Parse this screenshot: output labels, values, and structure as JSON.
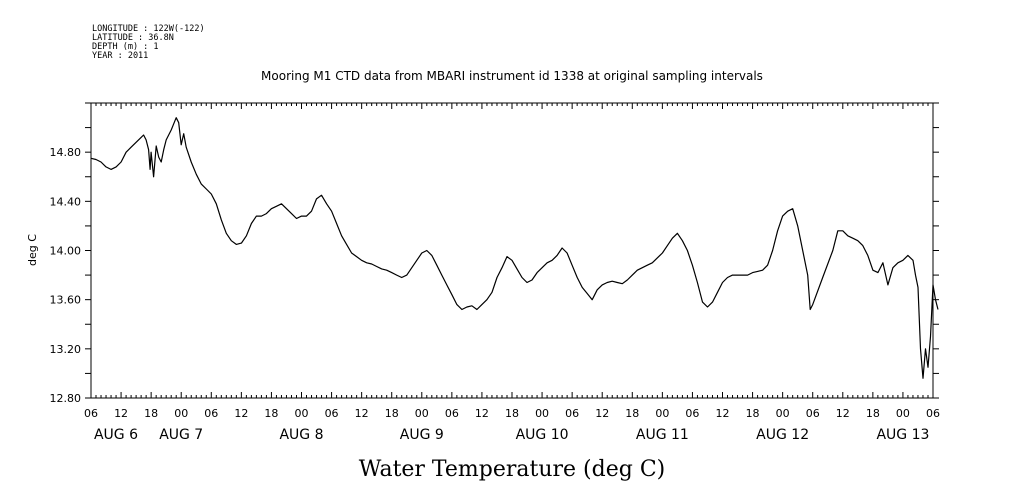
{
  "header": {
    "lines": [
      "LONGITUDE : 122W(-122)",
      "LATITUDE : 36.8N",
      "DEPTH (m) : 1",
      "YEAR : 2011"
    ]
  },
  "chart_data": {
    "type": "line",
    "title": "Mooring M1 CTD data from MBARI instrument id 1338 at original sampling intervals",
    "xlabel": "Water Temperature (deg C)",
    "ylabel": "deg C",
    "ylim": [
      12.8,
      15.2
    ],
    "yticks": [
      "12.80",
      "13.20",
      "13.60",
      "14.00",
      "14.40",
      "14.80"
    ],
    "x_unit": "hours since Aug 6 00:00",
    "xlim": [
      6,
      174
    ],
    "xtick_labels": [
      "06",
      "12",
      "18",
      "00",
      "06",
      "12",
      "18",
      "00",
      "06",
      "12",
      "18",
      "00",
      "06",
      "12",
      "18",
      "00",
      "06",
      "12",
      "18",
      "00",
      "06",
      "12",
      "18",
      "00",
      "06",
      "12",
      "18",
      "00",
      "06"
    ],
    "date_labels": [
      "AUG 6",
      "AUG 7",
      "AUG 8",
      "AUG 9",
      "AUG 10",
      "AUG 11",
      "AUG 12",
      "AUG 13"
    ],
    "grid": false,
    "series": [
      {
        "color": "#000000",
        "points": [
          [
            6,
            14.75
          ],
          [
            7,
            14.74
          ],
          [
            8,
            14.72
          ],
          [
            9,
            14.68
          ],
          [
            10,
            14.66
          ],
          [
            11,
            14.68
          ],
          [
            12,
            14.72
          ],
          [
            13,
            14.8
          ],
          [
            14,
            14.84
          ],
          [
            15,
            14.88
          ],
          [
            16,
            14.92
          ],
          [
            16.5,
            14.94
          ],
          [
            17,
            14.9
          ],
          [
            17.5,
            14.82
          ],
          [
            17.8,
            14.66
          ],
          [
            18,
            14.8
          ],
          [
            18.5,
            14.6
          ],
          [
            19,
            14.85
          ],
          [
            19.5,
            14.76
          ],
          [
            20,
            14.72
          ],
          [
            20.5,
            14.82
          ],
          [
            21,
            14.9
          ],
          [
            22,
            14.98
          ],
          [
            23,
            15.08
          ],
          [
            23.5,
            15.04
          ],
          [
            24,
            14.86
          ],
          [
            24.5,
            14.95
          ],
          [
            25,
            14.84
          ],
          [
            26,
            14.72
          ],
          [
            27,
            14.62
          ],
          [
            28,
            14.54
          ],
          [
            29,
            14.5
          ],
          [
            30,
            14.46
          ],
          [
            31,
            14.38
          ],
          [
            32,
            14.25
          ],
          [
            33,
            14.14
          ],
          [
            34,
            14.08
          ],
          [
            35,
            14.05
          ],
          [
            36,
            14.06
          ],
          [
            37,
            14.12
          ],
          [
            38,
            14.22
          ],
          [
            39,
            14.28
          ],
          [
            40,
            14.28
          ],
          [
            41,
            14.3
          ],
          [
            42,
            14.34
          ],
          [
            43,
            14.36
          ],
          [
            44,
            14.38
          ],
          [
            45,
            14.34
          ],
          [
            46,
            14.3
          ],
          [
            47,
            14.26
          ],
          [
            48,
            14.28
          ],
          [
            49,
            14.28
          ],
          [
            50,
            14.32
          ],
          [
            51,
            14.42
          ],
          [
            52,
            14.45
          ],
          [
            53,
            14.38
          ],
          [
            54,
            14.32
          ],
          [
            55,
            14.22
          ],
          [
            56,
            14.12
          ],
          [
            57,
            14.05
          ],
          [
            58,
            13.98
          ],
          [
            59,
            13.95
          ],
          [
            60,
            13.92
          ],
          [
            61,
            13.9
          ],
          [
            62,
            13.89
          ],
          [
            63,
            13.87
          ],
          [
            64,
            13.85
          ],
          [
            65,
            13.84
          ],
          [
            66,
            13.82
          ],
          [
            67,
            13.8
          ],
          [
            68,
            13.78
          ],
          [
            69,
            13.8
          ],
          [
            70,
            13.86
          ],
          [
            71,
            13.92
          ],
          [
            72,
            13.98
          ],
          [
            73,
            14.0
          ],
          [
            74,
            13.96
          ],
          [
            75,
            13.88
          ],
          [
            76,
            13.8
          ],
          [
            77,
            13.72
          ],
          [
            78,
            13.64
          ],
          [
            79,
            13.56
          ],
          [
            80,
            13.52
          ],
          [
            81,
            13.54
          ],
          [
            82,
            13.55
          ],
          [
            83,
            13.52
          ],
          [
            84,
            13.56
          ],
          [
            85,
            13.6
          ],
          [
            86,
            13.66
          ],
          [
            87,
            13.78
          ],
          [
            88,
            13.86
          ],
          [
            89,
            13.95
          ],
          [
            90,
            13.92
          ],
          [
            91,
            13.85
          ],
          [
            92,
            13.78
          ],
          [
            93,
            13.74
          ],
          [
            94,
            13.76
          ],
          [
            95,
            13.82
          ],
          [
            96,
            13.86
          ],
          [
            97,
            13.9
          ],
          [
            98,
            13.92
          ],
          [
            99,
            13.96
          ],
          [
            100,
            14.02
          ],
          [
            101,
            13.98
          ],
          [
            102,
            13.88
          ],
          [
            103,
            13.78
          ],
          [
            104,
            13.7
          ],
          [
            105,
            13.65
          ],
          [
            106,
            13.6
          ],
          [
            107,
            13.68
          ],
          [
            108,
            13.72
          ],
          [
            109,
            13.74
          ],
          [
            110,
            13.75
          ],
          [
            111,
            13.74
          ],
          [
            112,
            13.73
          ],
          [
            113,
            13.76
          ],
          [
            114,
            13.8
          ],
          [
            115,
            13.84
          ],
          [
            116,
            13.86
          ],
          [
            117,
            13.88
          ],
          [
            118,
            13.9
          ],
          [
            119,
            13.94
          ],
          [
            120,
            13.98
          ],
          [
            121,
            14.04
          ],
          [
            122,
            14.1
          ],
          [
            123,
            14.14
          ],
          [
            124,
            14.08
          ],
          [
            125,
            14.0
          ],
          [
            126,
            13.88
          ],
          [
            127,
            13.74
          ],
          [
            128,
            13.58
          ],
          [
            129,
            13.54
          ],
          [
            130,
            13.58
          ],
          [
            131,
            13.66
          ],
          [
            132,
            13.74
          ],
          [
            133,
            13.78
          ],
          [
            134,
            13.8
          ],
          [
            135,
            13.8
          ],
          [
            136,
            13.8
          ],
          [
            137,
            13.8
          ],
          [
            138,
            13.82
          ],
          [
            139,
            13.83
          ],
          [
            140,
            13.84
          ],
          [
            141,
            13.88
          ],
          [
            142,
            14.0
          ],
          [
            143,
            14.16
          ],
          [
            144,
            14.28
          ],
          [
            145,
            14.32
          ],
          [
            146,
            14.34
          ],
          [
            147,
            14.2
          ],
          [
            148,
            14.0
          ],
          [
            149,
            13.8
          ],
          [
            149.5,
            13.52
          ],
          [
            150,
            13.56
          ],
          [
            152,
            13.78
          ],
          [
            154,
            14.0
          ],
          [
            155,
            14.16
          ],
          [
            156,
            14.16
          ],
          [
            157,
            14.12
          ],
          [
            158,
            14.1
          ],
          [
            159,
            14.08
          ],
          [
            160,
            14.04
          ],
          [
            161,
            13.96
          ],
          [
            162,
            13.84
          ],
          [
            163,
            13.82
          ],
          [
            164,
            13.9
          ],
          [
            165,
            13.72
          ],
          [
            166,
            13.86
          ],
          [
            167,
            13.9
          ],
          [
            168,
            13.92
          ],
          [
            169,
            13.96
          ],
          [
            170,
            13.92
          ],
          [
            170.5,
            13.8
          ],
          [
            171,
            13.7
          ],
          [
            171.5,
            13.2
          ],
          [
            172,
            12.96
          ],
          [
            172.5,
            13.2
          ],
          [
            173,
            13.05
          ],
          [
            173.5,
            13.3
          ],
          [
            174,
            13.72
          ],
          [
            174.5,
            13.6
          ],
          [
            175,
            13.52
          ]
        ]
      }
    ]
  }
}
